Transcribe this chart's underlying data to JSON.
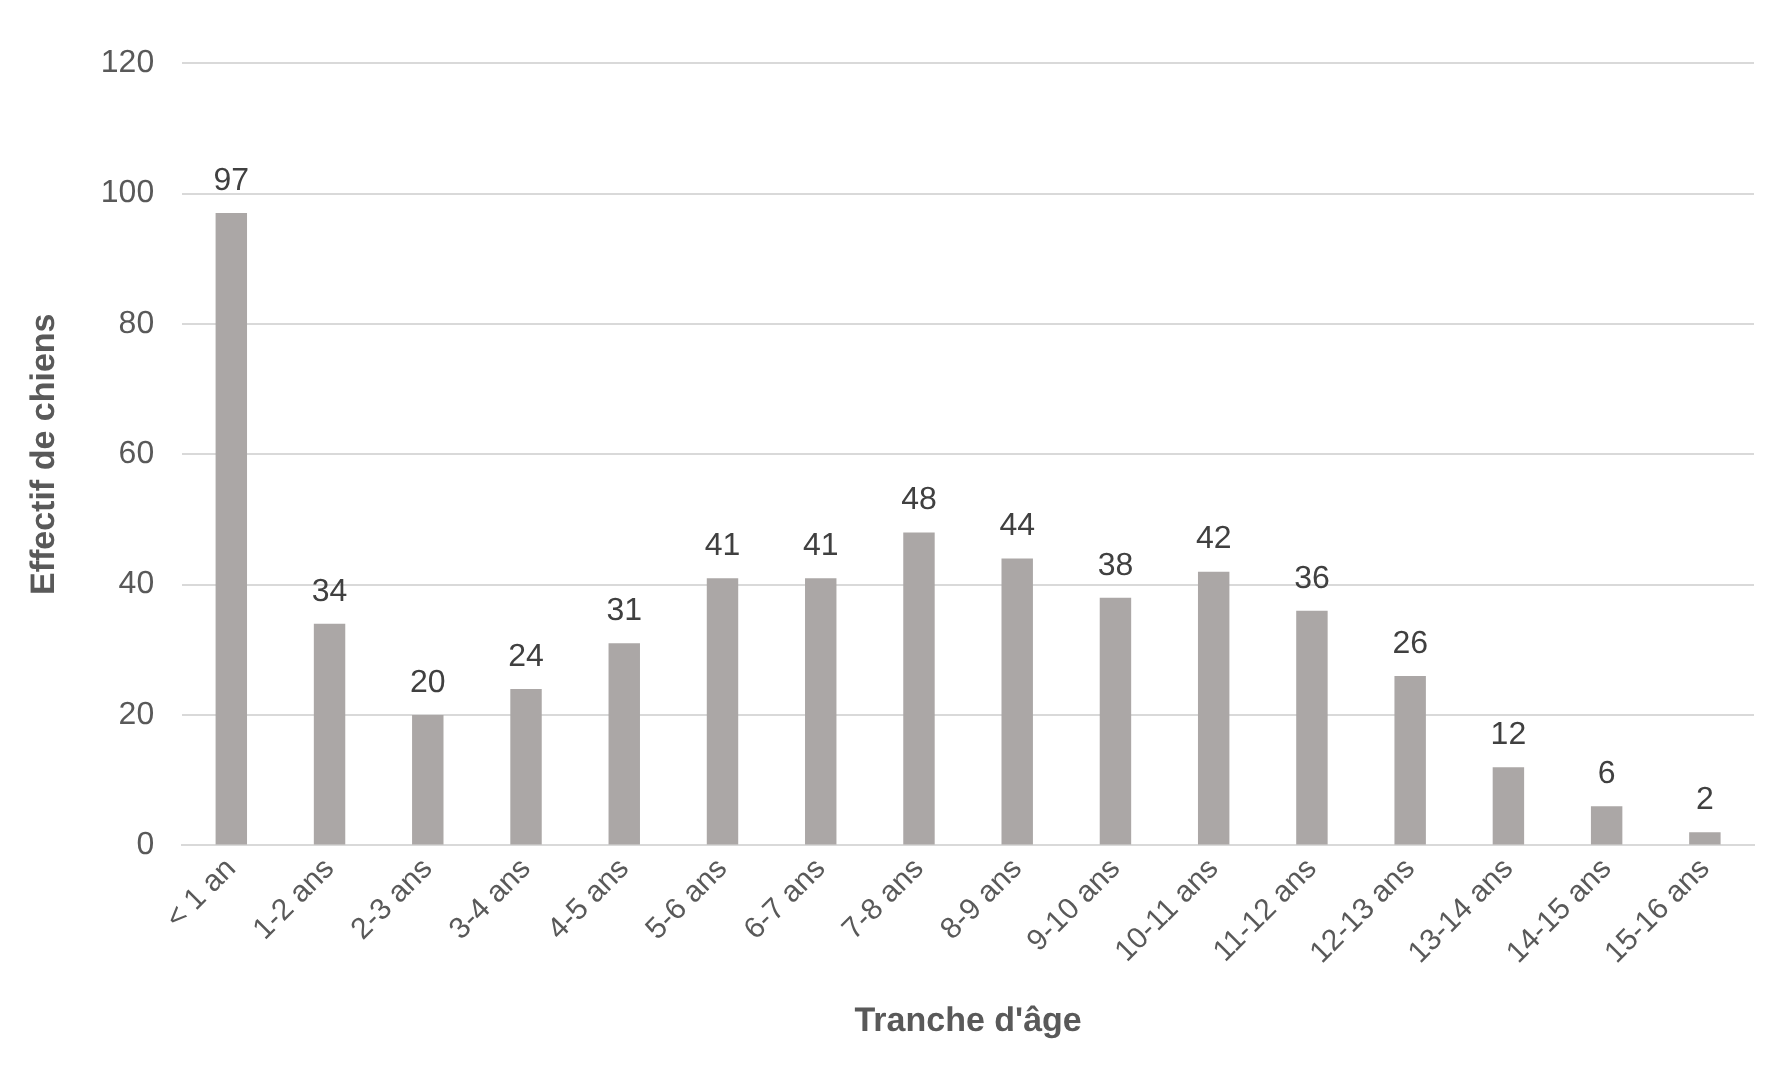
{
  "chart_data": {
    "type": "bar",
    "xlabel": "Tranche d'âge",
    "ylabel": "Effectif de chiens",
    "categories": [
      "< 1 an",
      "1-2 ans",
      "2-3 ans",
      "3-4 ans",
      "4-5 ans",
      "5-6 ans",
      "6-7 ans",
      "7-8 ans",
      "8-9 ans",
      "9-10 ans",
      "10-11 ans",
      "11-12 ans",
      "12-13 ans",
      "13-14 ans",
      "14-15 ans",
      "15-16 ans"
    ],
    "values": [
      97,
      34,
      20,
      24,
      31,
      41,
      41,
      48,
      44,
      38,
      42,
      36,
      26,
      12,
      6,
      2
    ],
    "color": "#aba7a6",
    "ylim": [
      0,
      120
    ],
    "yticks": [
      0,
      20,
      40,
      60,
      80,
      100,
      120
    ],
    "grid": "y",
    "data_labels": true
  }
}
